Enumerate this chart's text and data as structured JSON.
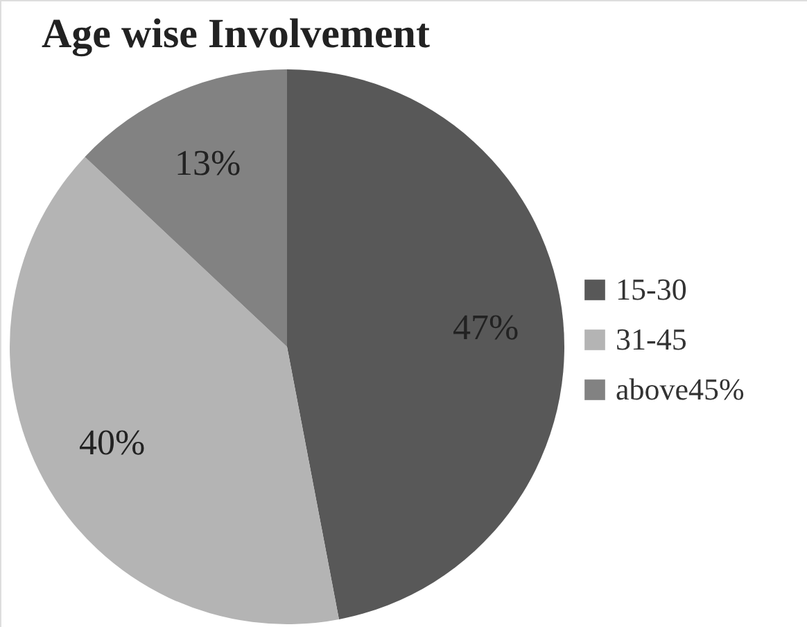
{
  "chart_data": {
    "type": "pie",
    "title": "Age wise Involvement",
    "categories": [
      "15-30",
      "31-45",
      "above45%"
    ],
    "values": [
      47,
      40,
      13
    ],
    "value_labels": [
      "47%",
      "40%",
      "13%"
    ],
    "colors": [
      "#585858",
      "#b4b4b4",
      "#828282"
    ],
    "legend": "right"
  }
}
